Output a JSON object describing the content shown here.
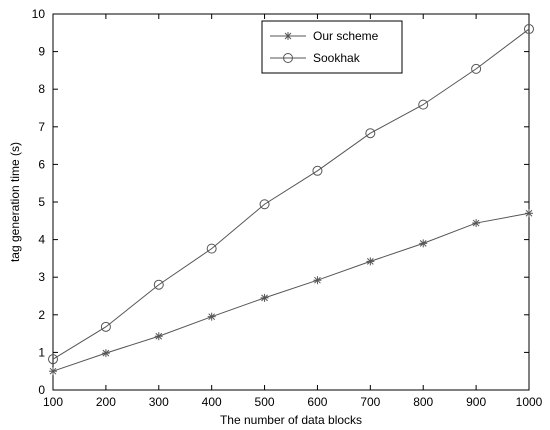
{
  "chart_data": {
    "type": "line",
    "title": "",
    "xlabel": "The number of data blocks",
    "ylabel": "tag generation time (s)",
    "x": [
      100,
      200,
      300,
      400,
      500,
      600,
      700,
      800,
      900,
      1000
    ],
    "xlim": [
      100,
      1000
    ],
    "ylim": [
      0,
      10
    ],
    "xticks": [
      "100",
      "200",
      "300",
      "400",
      "500",
      "600",
      "700",
      "800",
      "900",
      "1000"
    ],
    "yticks": [
      "0",
      "1",
      "2",
      "3",
      "4",
      "5",
      "6",
      "7",
      "8",
      "9",
      "10"
    ],
    "grid": false,
    "legend_position": "top-center",
    "series": [
      {
        "name": "Our scheme",
        "marker": "asterisk",
        "color": "#555555",
        "values": [
          0.5,
          0.98,
          1.43,
          1.95,
          2.45,
          2.92,
          3.42,
          3.9,
          4.44,
          4.7
        ]
      },
      {
        "name": "Sookhak",
        "marker": "circle",
        "color": "#555555",
        "values": [
          0.82,
          1.68,
          2.8,
          3.76,
          4.94,
          5.83,
          6.83,
          7.59,
          8.54,
          9.6
        ]
      }
    ]
  }
}
